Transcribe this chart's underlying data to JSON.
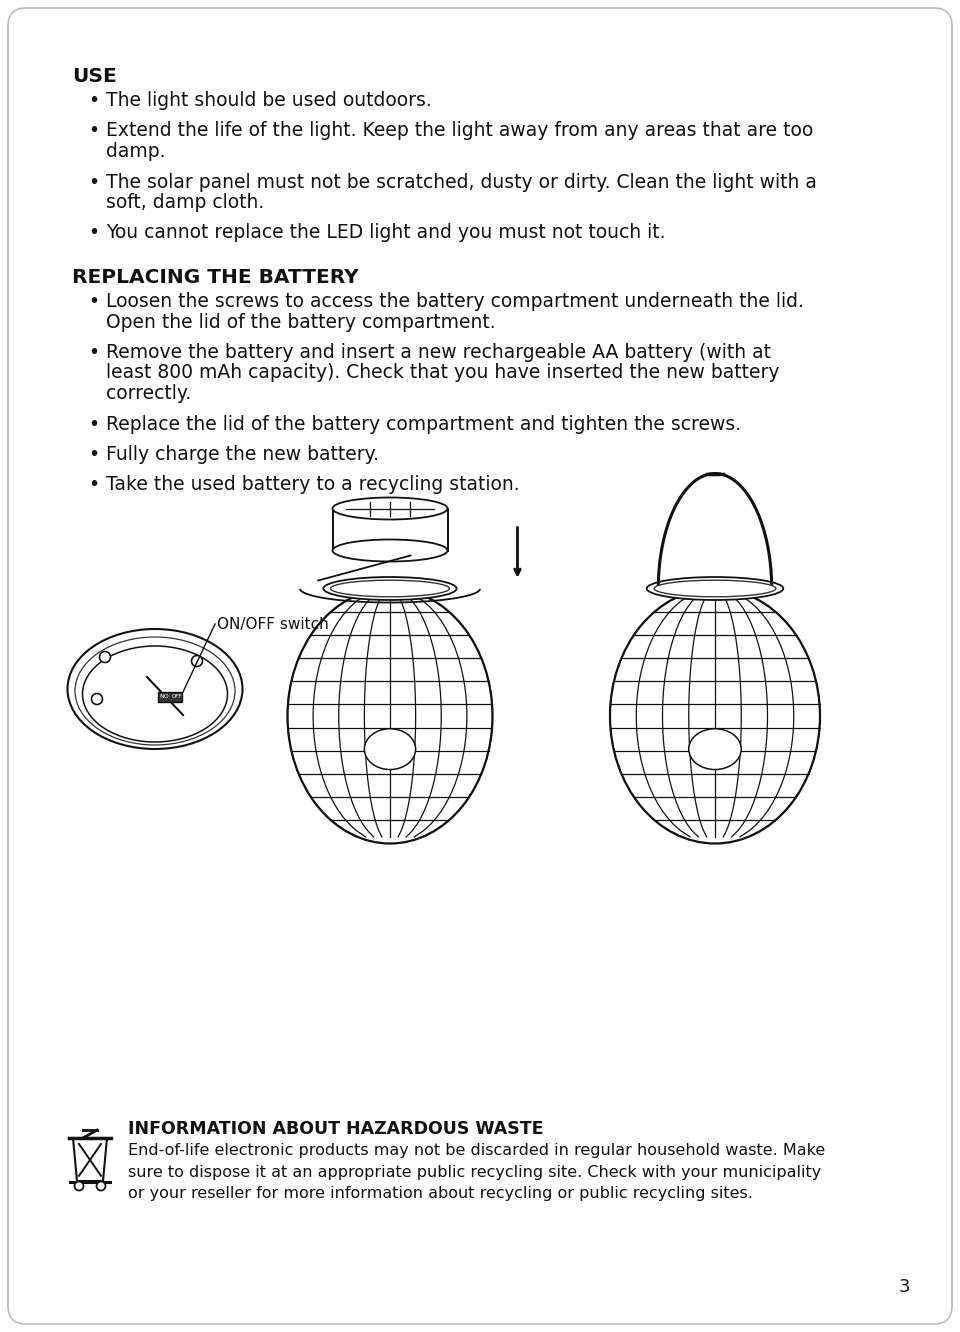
{
  "bg_color": "#ffffff",
  "page_number": "3",
  "section1_title": "USE",
  "section1_bullets": [
    "The light should be used outdoors.",
    "Extend the life of the light. Keep the light away from any areas that are too\ndamp.",
    "The solar panel must not be scratched, dusty or dirty. Clean the light with a\nsoft, damp cloth.",
    "You cannot replace the LED light and you must not touch it."
  ],
  "section2_title": "REPLACING THE BATTERY",
  "section2_bullets": [
    "Loosen the screws to access the battery compartment underneath the lid.\nOpen the lid of the battery compartment.",
    "Remove the battery and insert a new rechargeable AA battery (with at\nleast 800 mAh capacity). Check that you have inserted the new battery\ncorrectly.",
    "Replace the lid of the battery compartment and tighten the screws.",
    "Fully charge the new battery.",
    "Take the used battery to a recycling station."
  ],
  "diagram_label": "ON/OFF switch",
  "hazard_title": "INFORMATION ABOUT HAZARDOUS WASTE",
  "hazard_text": "End-of-life electronic products may not be discarded in regular household waste. Make\nsure to dispose it at an appropriate public recycling site. Check with your municipality\nor your reseller for more information about recycling or public recycling sites.",
  "text_color": "#111111",
  "bullet_char": "•"
}
